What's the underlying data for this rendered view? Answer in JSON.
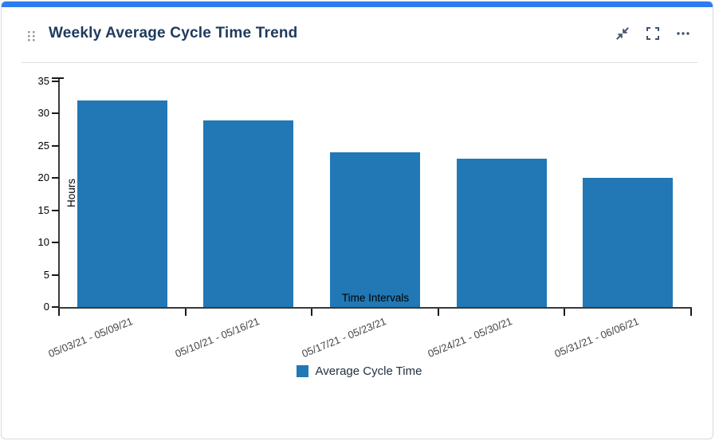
{
  "widget": {
    "title": "Weekly Average Cycle Time Trend",
    "toolbar": {
      "collapse_icon": "collapse-arrows-icon",
      "fullscreen_icon": "fullscreen-brackets-icon",
      "more_icon": "ellipsis-icon"
    },
    "drag_handle_icon": "drag-handle-dots-icon"
  },
  "colors": {
    "accent_bar": "#2C7DF0",
    "bar": "#2178B5",
    "title_text": "#1E3A5C",
    "icon": "#42526E",
    "card_border": "#D5D9DE"
  },
  "chart_data": {
    "type": "bar",
    "title": "Weekly Average Cycle Time Trend",
    "categories": [
      "05/03/21 - 05/09/21",
      "05/10/21 - 05/16/21",
      "05/17/21 - 05/23/21",
      "05/24/21 - 05/30/21",
      "05/31/21 - 06/06/21"
    ],
    "series": [
      {
        "name": "Average Cycle Time",
        "values": [
          32,
          29,
          24,
          23,
          20
        ]
      }
    ],
    "xlabel": "Time Intervals",
    "ylabel": "Hours",
    "ylim": [
      0,
      35
    ],
    "yticks": [
      0,
      5,
      10,
      15,
      20,
      25,
      30,
      35
    ],
    "grid": false,
    "legend_position": "bottom",
    "bar_color": "#2178B5",
    "x_tick_label_rotation_deg": -22
  },
  "legend": {
    "label": "Average Cycle Time"
  }
}
